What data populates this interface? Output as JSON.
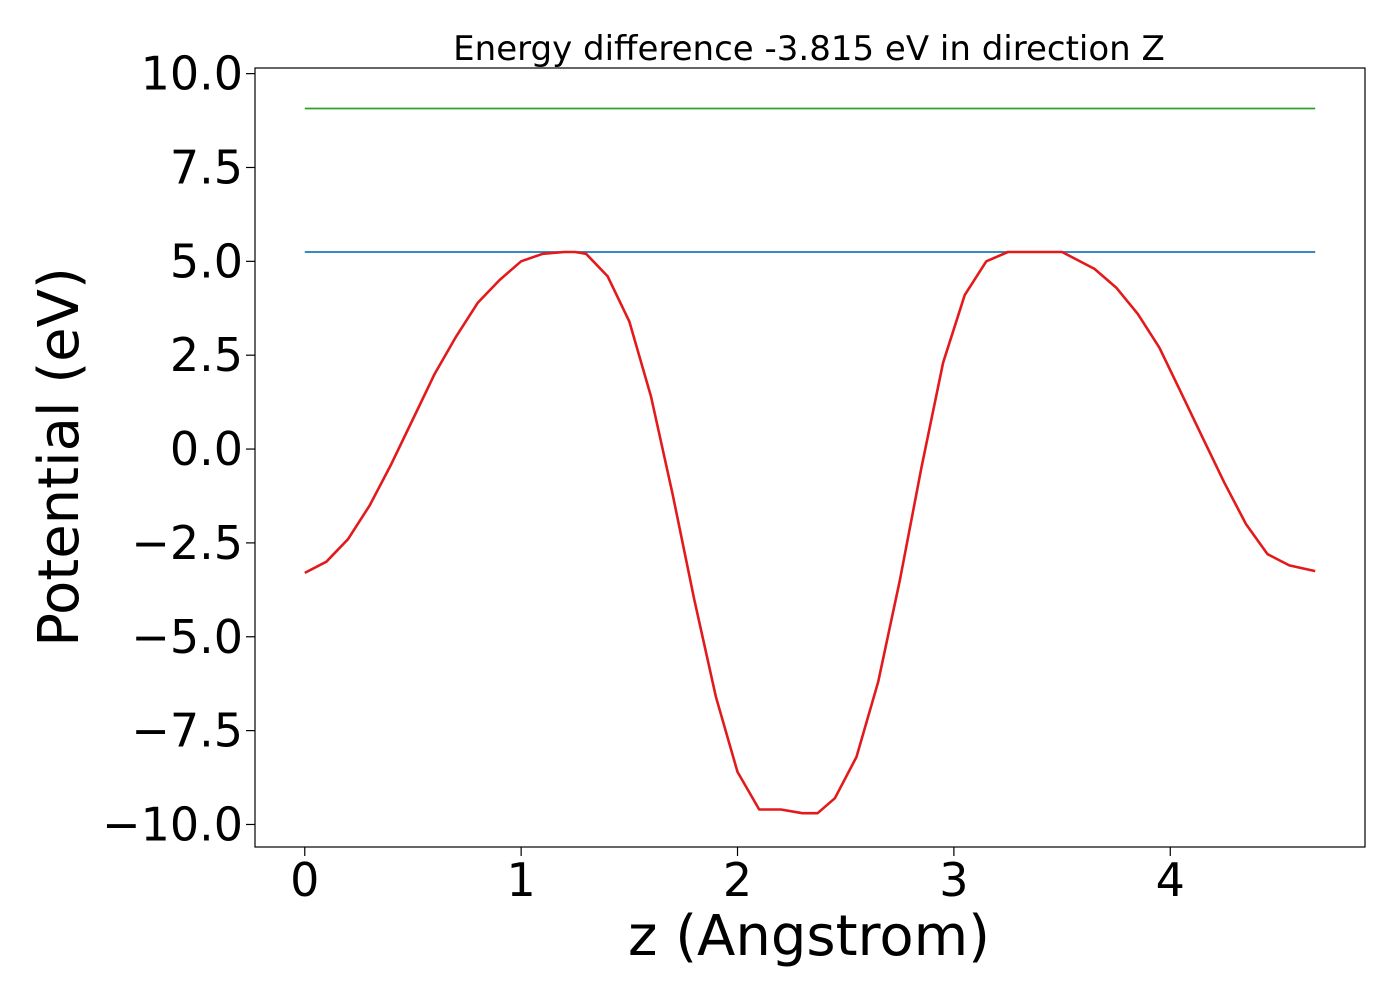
{
  "chart_data": {
    "type": "line",
    "title": "Energy difference -3.815 eV in direction Z",
    "xlabel": "z (Angstrom)",
    "ylabel": "Potential (eV)",
    "xlim": [
      -0.23,
      4.9
    ],
    "ylim": [
      -10.6,
      10.15
    ],
    "xticks": [
      0,
      1,
      2,
      3,
      4
    ],
    "xtick_labels": [
      "0",
      "1",
      "2",
      "3",
      "4"
    ],
    "yticks": [
      10.0,
      7.5,
      5.0,
      2.5,
      0.0,
      -2.5,
      -5.0,
      -7.5,
      -10.0
    ],
    "ytick_labels": [
      "10.0",
      "7.5",
      "5.0",
      "2.5",
      "0.0",
      "−2.5",
      "−5.0",
      "−7.5",
      "−10.0"
    ],
    "grid": false,
    "legend": "none",
    "series": [
      {
        "color": "#2ca02c",
        "x": [
          0,
          4.67
        ],
        "y": [
          9.07,
          9.07
        ]
      },
      {
        "color": "#1f77b4",
        "x": [
          0,
          4.67
        ],
        "y": [
          5.25,
          5.25
        ]
      },
      {
        "color": "#e31a1c",
        "x": [
          0.0,
          0.1,
          0.2,
          0.3,
          0.4,
          0.5,
          0.6,
          0.7,
          0.8,
          0.9,
          1.0,
          1.1,
          1.2,
          1.25,
          1.3,
          1.4,
          1.5,
          1.6,
          1.7,
          1.8,
          1.9,
          2.0,
          2.1,
          2.2,
          2.3,
          2.37,
          2.45,
          2.55,
          2.65,
          2.75,
          2.85,
          2.95,
          3.05,
          3.15,
          3.25,
          3.35,
          3.45,
          3.5,
          3.55,
          3.65,
          3.75,
          3.85,
          3.95,
          4.05,
          4.15,
          4.25,
          4.35,
          4.45,
          4.55,
          4.67
        ],
        "y": [
          -3.3,
          -3.0,
          -2.4,
          -1.5,
          -0.4,
          0.8,
          2.0,
          3.0,
          3.9,
          4.5,
          5.0,
          5.2,
          5.25,
          5.25,
          5.2,
          4.6,
          3.4,
          1.4,
          -1.2,
          -4.0,
          -6.6,
          -8.6,
          -9.6,
          -9.6,
          -9.7,
          -9.7,
          -9.3,
          -8.2,
          -6.2,
          -3.5,
          -0.5,
          2.3,
          4.1,
          5.0,
          5.25,
          5.25,
          5.25,
          5.25,
          5.1,
          4.8,
          4.3,
          3.6,
          2.7,
          1.5,
          0.3,
          -0.9,
          -2.0,
          -2.8,
          -3.1,
          -3.25
        ]
      }
    ]
  }
}
